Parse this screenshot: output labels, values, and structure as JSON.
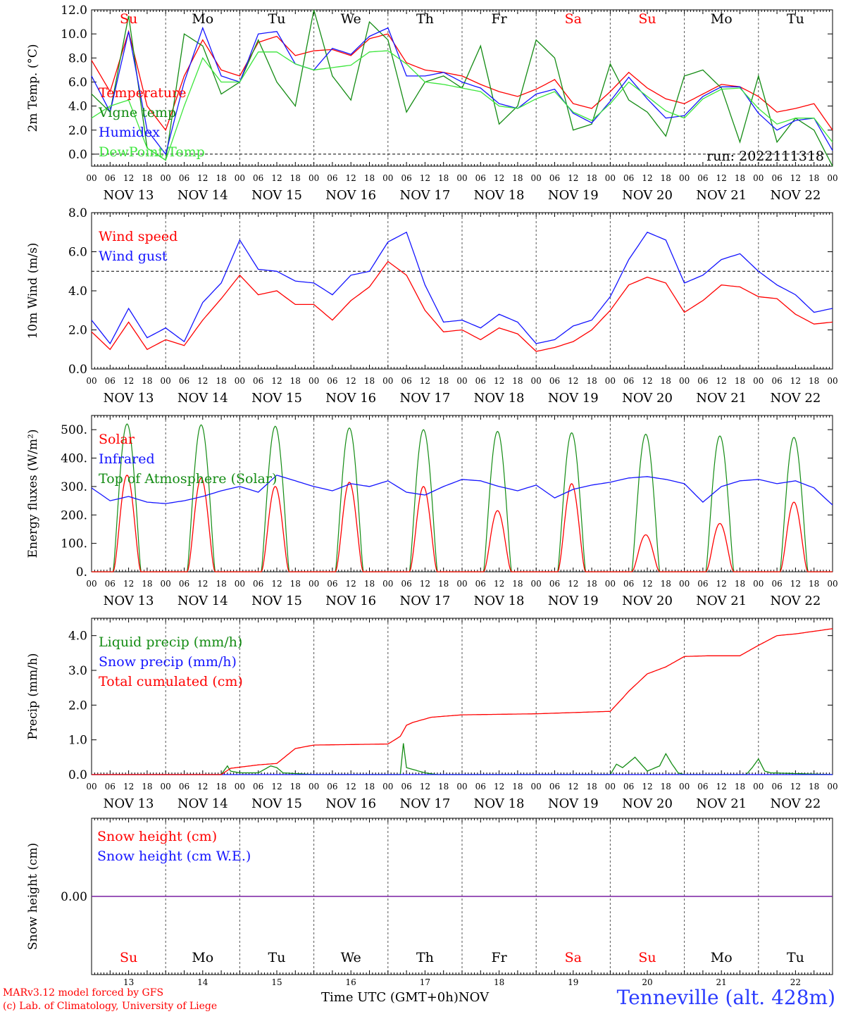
{
  "colors": {
    "red": "#ff0000",
    "green": "#148c14",
    "blue": "#1414ff",
    "lightgreen": "#3ce63c",
    "purple": "#7a1fa2",
    "axis": "#000000",
    "grid": "#555555"
  },
  "day_names": [
    "Su",
    "Mo",
    "Tu",
    "We",
    "Th",
    "Fr",
    "Sa",
    "Su",
    "Mo",
    "Tu"
  ],
  "weekend_flags": [
    true,
    false,
    false,
    false,
    false,
    false,
    true,
    true,
    false,
    false
  ],
  "day_numbers": [
    "13",
    "14",
    "15",
    "16",
    "17",
    "18",
    "19",
    "20",
    "21",
    "22"
  ],
  "date_labels": [
    "NOV 13",
    "NOV 14",
    "NOV 15",
    "NOV 16",
    "NOV 17",
    "NOV 18",
    "NOV 19",
    "NOV 20",
    "NOV 21",
    "NOV 22"
  ],
  "hour_labels": [
    "00",
    "06",
    "12",
    "18"
  ],
  "last_hour_label": "00",
  "footer": {
    "credit_line1": "MARv3.12 model forced by GFS",
    "credit_line2": "(c) Lab. of Climatology, University of Liege",
    "x_axis_title": "Time UTC (GMT+0h)",
    "month": "NOV",
    "station": "Tenneville (alt. 428m)"
  },
  "chart_data": [
    {
      "type": "line",
      "ylabel": "2m Temp. (°C)",
      "ylim": [
        -1,
        12
      ],
      "yticks": [
        "0.0",
        "2.0",
        "4.0",
        "6.0",
        "8.0",
        "10.0",
        "12.0"
      ],
      "ytick_values": [
        0,
        2,
        4,
        6,
        8,
        10,
        12
      ],
      "ref_line": 0,
      "annotation": "run: 2022111318",
      "x_unit": "hours since 2022-11-13 00 UTC",
      "x": [
        0,
        6,
        12,
        18,
        24,
        30,
        36,
        42,
        48,
        54,
        60,
        66,
        72,
        78,
        84,
        90,
        96,
        102,
        108,
        114,
        120,
        126,
        132,
        138,
        144,
        150,
        156,
        162,
        168,
        174,
        180,
        186,
        192,
        198,
        204,
        210,
        216,
        222,
        228,
        234,
        240
      ],
      "series": [
        {
          "name": "Temperature",
          "color": "red",
          "values": [
            7.8,
            5.2,
            10.2,
            4.0,
            2.0,
            6.5,
            9.5,
            7.0,
            6.5,
            9.3,
            9.8,
            8.2,
            8.6,
            8.7,
            8.2,
            9.6,
            10.0,
            7.6,
            7.0,
            6.8,
            6.5,
            5.8,
            5.2,
            4.8,
            5.4,
            6.2,
            4.2,
            3.8,
            5.2,
            6.8,
            5.5,
            4.6,
            4.2,
            5.0,
            5.8,
            5.6,
            4.8,
            3.5,
            3.8,
            4.2,
            2.0
          ]
        },
        {
          "name": "Vigne temp",
          "color": "green",
          "values": [
            5.0,
            3.5,
            11.5,
            0.5,
            -0.5,
            10.0,
            9.0,
            5.0,
            6.0,
            9.5,
            6.0,
            4.0,
            12.0,
            6.5,
            4.5,
            11.0,
            9.5,
            3.5,
            6.0,
            6.5,
            5.5,
            9.0,
            2.5,
            4.0,
            9.5,
            8.0,
            2.0,
            2.5,
            7.5,
            4.5,
            3.5,
            1.5,
            6.5,
            7.0,
            5.5,
            1.0,
            6.5,
            1.0,
            3.0,
            2.0,
            -1.0
          ]
        },
        {
          "name": "Humidex",
          "color": "blue",
          "values": [
            6.5,
            3.5,
            10.2,
            2.0,
            0.0,
            6.0,
            10.5,
            6.5,
            6.0,
            10.0,
            10.2,
            7.5,
            7.0,
            8.8,
            8.3,
            9.8,
            10.5,
            6.5,
            6.5,
            6.8,
            6.0,
            5.5,
            4.2,
            3.8,
            5.0,
            5.4,
            3.4,
            2.6,
            4.4,
            6.4,
            4.6,
            3.0,
            3.2,
            4.8,
            5.6,
            5.6,
            3.4,
            2.0,
            2.8,
            3.0,
            0.3
          ]
        },
        {
          "name": "DewPoint Temp",
          "color": "lightgreen",
          "values": [
            3.0,
            4.0,
            4.5,
            0.5,
            -0.5,
            4.0,
            8.0,
            6.0,
            6.0,
            8.5,
            8.5,
            7.5,
            7.0,
            7.2,
            7.4,
            8.5,
            8.6,
            7.5,
            6.0,
            5.8,
            5.5,
            5.2,
            4.0,
            3.8,
            4.6,
            5.2,
            3.5,
            2.8,
            4.2,
            6.0,
            4.8,
            3.6,
            3.0,
            4.6,
            5.4,
            5.5,
            3.8,
            2.5,
            3.0,
            3.0,
            1.0
          ]
        }
      ]
    },
    {
      "type": "line",
      "ylabel": "10m Wind (m/s)",
      "ylim": [
        0,
        8
      ],
      "yticks": [
        "0.0",
        "2.0",
        "4.0",
        "6.0",
        "8.0"
      ],
      "ytick_values": [
        0,
        2,
        4,
        6,
        8
      ],
      "ref_line": 5,
      "x_unit": "hours since 2022-11-13 00 UTC",
      "x": [
        0,
        6,
        12,
        18,
        24,
        30,
        36,
        42,
        48,
        54,
        60,
        66,
        72,
        78,
        84,
        90,
        96,
        102,
        108,
        114,
        120,
        126,
        132,
        138,
        144,
        150,
        156,
        162,
        168,
        174,
        180,
        186,
        192,
        198,
        204,
        210,
        216,
        222,
        228,
        234,
        240
      ],
      "series": [
        {
          "name": "Wind speed",
          "color": "red",
          "values": [
            1.9,
            1.0,
            2.4,
            1.0,
            1.5,
            1.2,
            2.5,
            3.6,
            4.8,
            3.8,
            4.0,
            3.3,
            3.3,
            2.5,
            3.5,
            4.2,
            5.5,
            4.8,
            3.0,
            1.9,
            2.0,
            1.5,
            2.1,
            1.8,
            0.9,
            1.1,
            1.4,
            2.0,
            3.0,
            4.3,
            4.7,
            4.4,
            2.9,
            3.5,
            4.3,
            4.2,
            3.7,
            3.6,
            2.8,
            2.3,
            2.4
          ]
        },
        {
          "name": "Wind gust",
          "color": "blue",
          "values": [
            2.5,
            1.3,
            3.1,
            1.6,
            2.1,
            1.4,
            3.4,
            4.4,
            6.6,
            5.1,
            5.0,
            4.5,
            4.4,
            3.8,
            4.8,
            5.0,
            6.5,
            7.0,
            4.3,
            2.4,
            2.5,
            2.1,
            2.8,
            2.4,
            1.3,
            1.5,
            2.2,
            2.5,
            3.7,
            5.6,
            7.0,
            6.6,
            4.4,
            4.8,
            5.6,
            5.9,
            5.0,
            4.3,
            3.8,
            2.9,
            3.1
          ]
        }
      ]
    },
    {
      "type": "line",
      "ylabel": "Energy fluxes (W/m²)",
      "ylim": [
        0,
        550
      ],
      "yticks": [
        "0.",
        "100.",
        "200.",
        "300.",
        "400.",
        "500."
      ],
      "ytick_values": [
        0,
        100,
        200,
        300,
        400,
        500
      ],
      "x_unit": "hours since 2022-11-13 00 UTC",
      "daylight": {
        "sunrise_hour": 7,
        "sunset_hour": 16
      },
      "infrared": {
        "name": "Infrared",
        "color": "blue",
        "x": [
          0,
          6,
          12,
          18,
          24,
          30,
          36,
          42,
          48,
          54,
          60,
          66,
          72,
          78,
          84,
          90,
          96,
          102,
          108,
          114,
          120,
          126,
          132,
          138,
          144,
          150,
          156,
          162,
          168,
          174,
          180,
          186,
          192,
          198,
          204,
          210,
          216,
          222,
          228,
          234,
          240
        ],
        "values": [
          295,
          250,
          265,
          245,
          240,
          250,
          265,
          285,
          300,
          280,
          340,
          320,
          300,
          285,
          310,
          300,
          320,
          280,
          270,
          300,
          325,
          320,
          300,
          285,
          305,
          260,
          290,
          305,
          315,
          330,
          335,
          325,
          310,
          245,
          300,
          320,
          325,
          310,
          320,
          295,
          235
        ]
      },
      "top_of_atmosphere_peaks": [
        520,
        517,
        512,
        506,
        500,
        494,
        489,
        484,
        478,
        473
      ],
      "solar_peaks": [
        340,
        330,
        300,
        315,
        300,
        215,
        310,
        130,
        170,
        245
      ]
    },
    {
      "type": "line",
      "ylabel": "Precip (mm/h)",
      "ylim": [
        0,
        4.5
      ],
      "yticks": [
        "0.0",
        "1.0",
        "2.0",
        "3.0",
        "4.0"
      ],
      "ytick_values": [
        0,
        1,
        2,
        3,
        4
      ],
      "x_unit": "hours since 2022-11-13 00 UTC",
      "series": [
        {
          "name": "Liquid precip (mm/h)",
          "color": "green",
          "x": [
            0,
            42,
            44,
            45,
            48,
            54,
            58,
            60,
            62,
            72,
            100,
            101,
            102,
            104,
            108,
            112,
            168,
            170,
            172,
            176,
            180,
            184,
            186,
            188,
            190,
            192,
            212,
            214,
            216,
            218,
            220,
            240
          ],
          "values": [
            0,
            0,
            0.25,
            0.1,
            0.05,
            0.05,
            0.25,
            0.2,
            0.05,
            0,
            0,
            0.9,
            0.2,
            0.15,
            0.05,
            0,
            0,
            0.3,
            0.2,
            0.5,
            0.1,
            0.25,
            0.6,
            0.3,
            0.05,
            0,
            0,
            0.2,
            0.45,
            0.1,
            0.05,
            0
          ]
        },
        {
          "name": "Snow precip (mm/h)",
          "color": "blue",
          "x": [
            0,
            240
          ],
          "values": [
            0,
            0
          ]
        },
        {
          "name": "Total cumulated (cm)",
          "color": "red",
          "x": [
            0,
            42,
            45,
            54,
            60,
            66,
            72,
            96,
            100,
            102,
            104,
            110,
            120,
            144,
            168,
            172,
            174,
            180,
            186,
            192,
            200,
            210,
            216,
            222,
            228,
            240
          ],
          "values": [
            0,
            0,
            0.18,
            0.28,
            0.32,
            0.75,
            0.85,
            0.88,
            1.1,
            1.42,
            1.5,
            1.65,
            1.72,
            1.75,
            1.82,
            2.2,
            2.4,
            2.9,
            3.1,
            3.4,
            3.42,
            3.42,
            3.72,
            4.0,
            4.05,
            4.2
          ]
        }
      ]
    },
    {
      "type": "line",
      "ylabel": "Snow height (cm)",
      "ylim": [
        -1,
        1
      ],
      "yticks": [
        "0.00"
      ],
      "ytick_values": [
        0
      ],
      "x_unit": "hours since 2022-11-13 00 UTC",
      "series": [
        {
          "name": "Snow height (cm)",
          "color": "red",
          "x": [
            0,
            240
          ],
          "values": [
            0,
            0
          ]
        },
        {
          "name": "Snow height (cm W.E.)",
          "color": "blue",
          "x": [
            0,
            240
          ],
          "values": [
            0,
            0
          ]
        }
      ]
    }
  ]
}
